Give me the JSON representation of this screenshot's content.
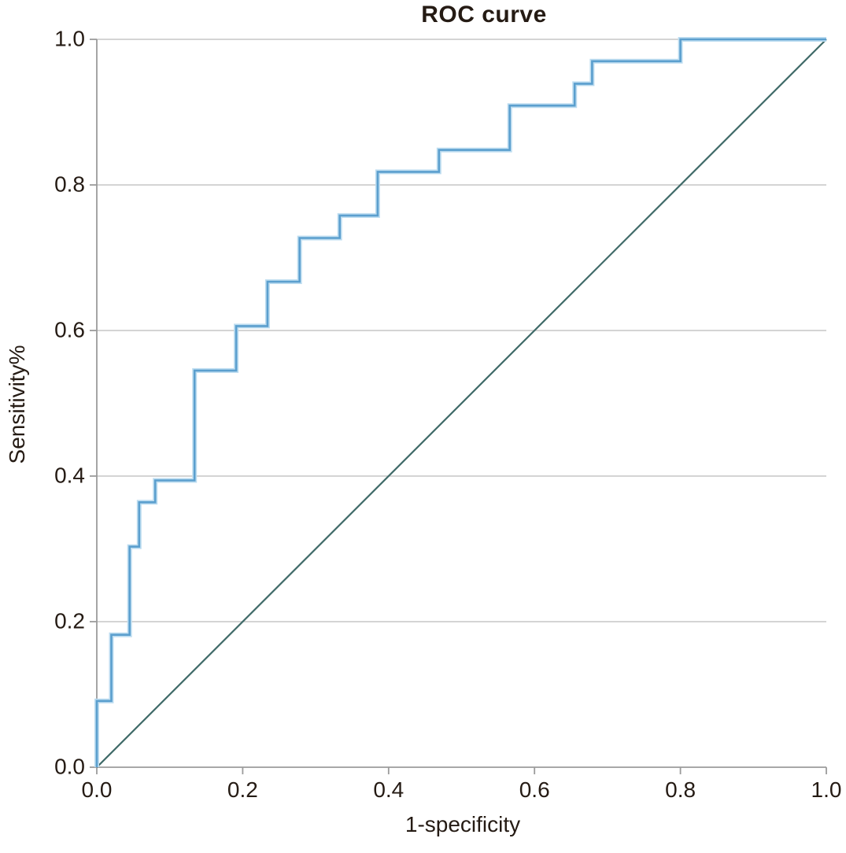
{
  "chart_data": {
    "type": "line",
    "title": "ROC curve",
    "xlabel": "1-specificity",
    "ylabel": "Sensitivity%",
    "xlim": [
      0.0,
      1.0
    ],
    "ylim": [
      0.0,
      1.0
    ],
    "x_ticks": [
      "0.0",
      "0.2",
      "0.4",
      "0.6",
      "0.8",
      "1.0"
    ],
    "y_ticks": [
      "0.0",
      "0.2",
      "0.4",
      "0.6",
      "0.8",
      "1.0"
    ],
    "grid": "horizontal-only",
    "legend": "none",
    "colors": {
      "roc_line": "#5b9fce",
      "roc_halo": "#bcdcf0",
      "diagonal_line": "#3f6a68",
      "gridline": "#c6c6c6",
      "axis": "#9b9b9b",
      "text": "#251b14"
    },
    "series": [
      {
        "name": "reference-diagonal",
        "style": "straight",
        "points": [
          [
            0.0,
            0.0
          ],
          [
            1.0,
            1.0
          ]
        ]
      },
      {
        "name": "ROC curve",
        "style": "step",
        "points": [
          [
            0.0,
            0.0
          ],
          [
            0.0,
            0.091
          ],
          [
            0.02,
            0.091
          ],
          [
            0.02,
            0.182
          ],
          [
            0.045,
            0.182
          ],
          [
            0.045,
            0.303
          ],
          [
            0.058,
            0.303
          ],
          [
            0.058,
            0.364
          ],
          [
            0.08,
            0.364
          ],
          [
            0.08,
            0.394
          ],
          [
            0.134,
            0.394
          ],
          [
            0.134,
            0.545
          ],
          [
            0.191,
            0.545
          ],
          [
            0.191,
            0.606
          ],
          [
            0.234,
            0.606
          ],
          [
            0.234,
            0.667
          ],
          [
            0.278,
            0.667
          ],
          [
            0.278,
            0.727
          ],
          [
            0.333,
            0.727
          ],
          [
            0.333,
            0.758
          ],
          [
            0.385,
            0.758
          ],
          [
            0.385,
            0.818
          ],
          [
            0.469,
            0.818
          ],
          [
            0.469,
            0.848
          ],
          [
            0.566,
            0.848
          ],
          [
            0.566,
            0.909
          ],
          [
            0.655,
            0.909
          ],
          [
            0.655,
            0.939
          ],
          [
            0.679,
            0.939
          ],
          [
            0.679,
            0.97
          ],
          [
            0.8,
            0.97
          ],
          [
            0.8,
            1.0
          ],
          [
            1.0,
            1.0
          ]
        ]
      }
    ]
  }
}
